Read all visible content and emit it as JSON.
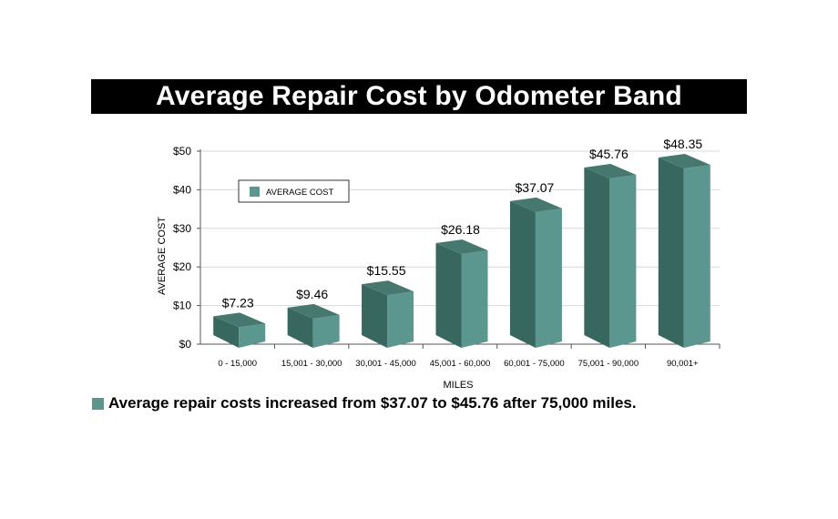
{
  "title": "Average Repair Cost by Odometer Band",
  "footnote": "Average repair costs increased from $37.07 to $45.76 after 75,000 miles.",
  "colors": {
    "bar_front": "#5b978f",
    "bar_side": "#386760",
    "bar_top": "#46786f",
    "axis": "#555555",
    "grid": "#d9d9d9"
  },
  "chart_data": {
    "type": "bar",
    "categories": [
      "0 - 15,000",
      "15,001 - 30,000",
      "30,001 - 45,000",
      "45,001 - 60,000",
      "60,001 - 75,000",
      "75,001 - 90,000",
      "90,001+"
    ],
    "series": [
      {
        "name": "AVERAGE COST",
        "values": [
          7.23,
          9.46,
          15.55,
          26.18,
          37.07,
          45.76,
          48.35
        ]
      }
    ],
    "data_labels": [
      "$7.23",
      "$9.46",
      "$15.55",
      "$26.18",
      "$37.07",
      "$45.76",
      "$48.35"
    ],
    "xlabel": "MILES",
    "ylabel": "AVERAGE COST",
    "ylim": [
      0,
      50
    ],
    "yticks": [
      0,
      10,
      20,
      30,
      40,
      50
    ],
    "ytick_labels": [
      "$0",
      "$10",
      "$20",
      "$30",
      "$40",
      "$50"
    ],
    "grid": true,
    "legend_position": "top-left",
    "style": "3d"
  }
}
